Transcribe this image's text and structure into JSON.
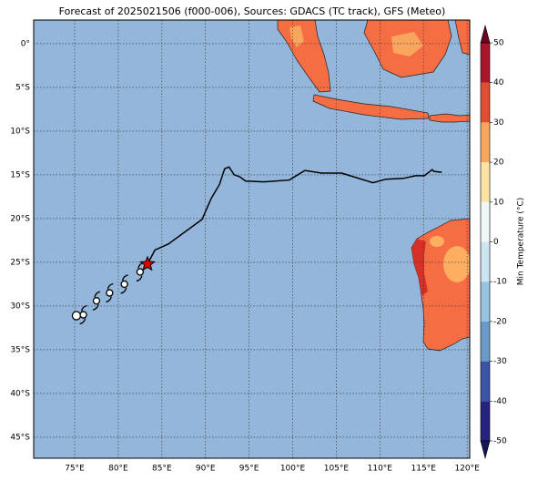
{
  "chart_data": {
    "type": "map",
    "title": "Forecast of 2025021506 (f000-006), Sources: GDACS (TC track), GFS (Meteo)",
    "xlim": [
      70.3,
      120.3
    ],
    "ylim": [
      -47.4,
      2.7
    ],
    "xticks": [
      {
        "value": 75,
        "label": "75°E"
      },
      {
        "value": 80,
        "label": "80°E"
      },
      {
        "value": 85,
        "label": "85°E"
      },
      {
        "value": 90,
        "label": "90°E"
      },
      {
        "value": 95,
        "label": "95°E"
      },
      {
        "value": 100,
        "label": "100°E"
      },
      {
        "value": 105,
        "label": "105°E"
      },
      {
        "value": 110,
        "label": "110°E"
      },
      {
        "value": 115,
        "label": "115°E"
      },
      {
        "value": 120,
        "label": "120°E"
      }
    ],
    "yticks": [
      {
        "value": 0,
        "label": "0°"
      },
      {
        "value": -5,
        "label": "5°S"
      },
      {
        "value": -10,
        "label": "10°S"
      },
      {
        "value": -15,
        "label": "15°S"
      },
      {
        "value": -20,
        "label": "20°S"
      },
      {
        "value": -25,
        "label": "25°S"
      },
      {
        "value": -30,
        "label": "30°S"
      },
      {
        "value": -35,
        "label": "35°S"
      },
      {
        "value": -40,
        "label": "40°S"
      },
      {
        "value": -45,
        "label": "45°S"
      }
    ],
    "grid": true,
    "track": {
      "lon": [
        83.35,
        84.2,
        85.75,
        89.6,
        90.65,
        91.6,
        92.2,
        92.7,
        93.3,
        93.9,
        94.6,
        96.7,
        99.6,
        101.4,
        103.3,
        105.6,
        109.2,
        110.7,
        112.7,
        114.1,
        115.1,
        116.0,
        116.2,
        117.1
      ],
      "lat": [
        -25.2,
        -23.6,
        -22.9,
        -20.1,
        -17.7,
        -16.1,
        -14.3,
        -14.1,
        -15.0,
        -15.2,
        -15.7,
        -15.8,
        -15.6,
        -14.5,
        -14.8,
        -14.8,
        -15.9,
        -15.5,
        -15.4,
        -15.1,
        -15.1,
        -14.4,
        -14.6,
        -14.7
      ]
    },
    "positions": {
      "lon": [
        75.2,
        76.0,
        77.5,
        79.0,
        80.7,
        82.5
      ],
      "lat": [
        -31.1,
        -31.0,
        -29.4,
        -28.5,
        -27.5,
        -26.1
      ]
    },
    "current": {
      "lon": 83.35,
      "lat": -25.2
    },
    "colorbar": {
      "label": "Min Temperature (°C)",
      "lim": [
        -50,
        50
      ],
      "ticks": [
        -50,
        -40,
        -30,
        -20,
        -10,
        0,
        10,
        20,
        30,
        40,
        50
      ],
      "colors": [
        "#25237f",
        "#3b54a3",
        "#6a9ac8",
        "#96c3de",
        "#cbe6f0",
        "#eff8f6",
        "#fde4a4",
        "#f8a55e",
        "#e04f33",
        "#a9162b"
      ],
      "extend_colors": [
        "#14145a",
        "#6e0223"
      ]
    }
  }
}
